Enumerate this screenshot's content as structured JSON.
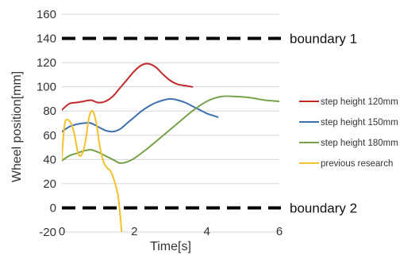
{
  "chart_data": {
    "type": "line",
    "xlabel": "Time[s]",
    "ylabel": "Wheel position[mm]",
    "xlim": [
      0,
      6
    ],
    "ylim": [
      -20,
      160
    ],
    "x_ticks": [
      "0",
      "2",
      "4",
      "6"
    ],
    "y_ticks": [
      "-20",
      "0",
      "20",
      "40",
      "60",
      "80",
      "100",
      "120",
      "140",
      "160"
    ],
    "grid": "horizontal",
    "legend_position": "right",
    "series": [
      {
        "name": "step height 120mm",
        "color": "#c0282a",
        "x": [
          0,
          0.2,
          0.4,
          0.6,
          0.8,
          1.0,
          1.2,
          1.4,
          1.6,
          1.8,
          2.0,
          2.2,
          2.4,
          2.6,
          2.8,
          3.0,
          3.2,
          3.4,
          3.6
        ],
        "y": [
          81,
          86,
          87,
          88,
          89,
          87,
          88,
          92,
          99,
          106,
          113,
          118,
          119,
          116,
          110,
          105,
          102,
          101,
          100
        ]
      },
      {
        "name": "step height 150mm",
        "color": "#3f6fae",
        "x": [
          0,
          0.2,
          0.4,
          0.6,
          0.8,
          1.0,
          1.2,
          1.4,
          1.6,
          1.8,
          2.0,
          2.2,
          2.4,
          2.6,
          2.8,
          3.0,
          3.2,
          3.4,
          3.6,
          3.8,
          4.0,
          4.2,
          4.3
        ],
        "y": [
          63,
          67,
          69,
          70,
          70,
          67,
          64,
          63,
          65,
          70,
          75,
          80,
          84,
          87,
          89,
          90,
          89,
          87,
          84,
          81,
          78,
          76,
          75
        ]
      },
      {
        "name": "step height 180mm",
        "color": "#77a24a",
        "x": [
          0,
          0.2,
          0.4,
          0.6,
          0.8,
          1.0,
          1.2,
          1.4,
          1.6,
          1.8,
          2.0,
          2.4,
          2.8,
          3.2,
          3.6,
          4.0,
          4.4,
          4.8,
          5.2,
          5.6,
          6.0
        ],
        "y": [
          39,
          43,
          45,
          47,
          48,
          46,
          43,
          40,
          37,
          38,
          41,
          50,
          60,
          70,
          80,
          88,
          92,
          92,
          91,
          89,
          88
        ]
      },
      {
        "name": "previous research",
        "color": "#f2c12e",
        "x": [
          0,
          0.03,
          0.1,
          0.25,
          0.35,
          0.45,
          0.55,
          0.65,
          0.75,
          0.85,
          0.95,
          1.05,
          1.15,
          1.25,
          1.35,
          1.45,
          1.55,
          1.62,
          1.65
        ],
        "y": [
          40,
          55,
          72,
          70,
          60,
          45,
          44,
          55,
          75,
          80,
          70,
          50,
          38,
          33,
          30,
          22,
          10,
          -10,
          -20
        ]
      }
    ],
    "annotations": [
      {
        "text": "boundary 1",
        "y": 140
      },
      {
        "text": "boundary 2",
        "y": 0
      }
    ]
  }
}
